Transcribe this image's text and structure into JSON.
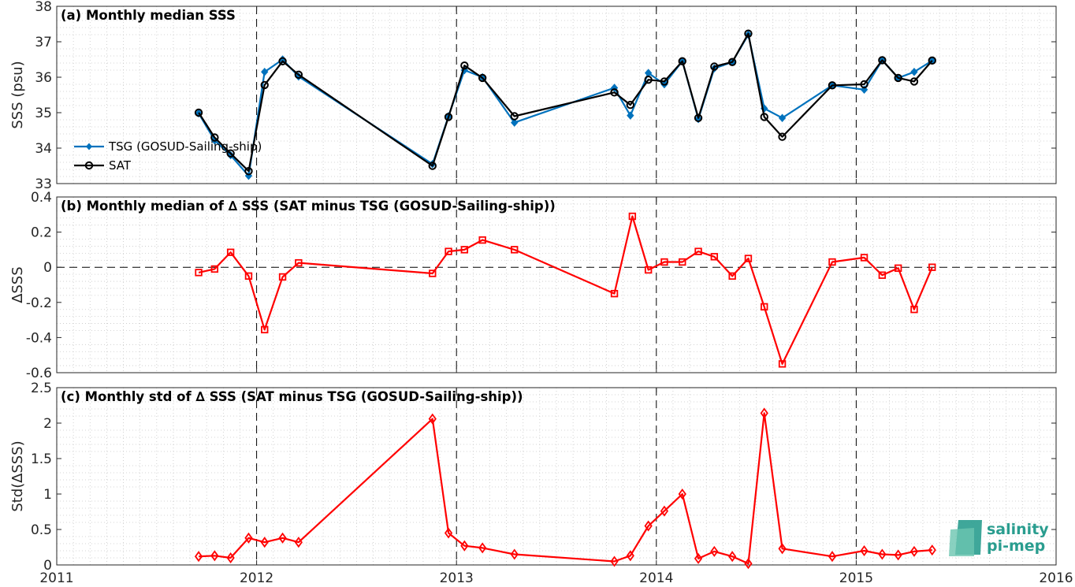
{
  "chart_data": [
    {
      "type": "line",
      "title": "(a) Monthly median SSS",
      "ylabel": "SSS (psu)",
      "xlim": [
        2011,
        2016
      ],
      "ylim": [
        33,
        38
      ],
      "yticks": [
        "33",
        "34",
        "35",
        "36",
        "37",
        "38"
      ],
      "grid": "minor dotted",
      "legend": "left-bottom",
      "series": [
        {
          "name": "TSG (GOSUD-Sailing-ship)",
          "color": "#0072bd",
          "marker": "diamond-filled",
          "x": [
            2011.71,
            2011.79,
            2011.87,
            2011.96,
            2012.04,
            2012.13,
            2012.21,
            2012.88,
            2012.96,
            2013.04,
            2013.13,
            2013.29,
            2013.79,
            2013.87,
            2013.96,
            2014.04,
            2014.13,
            2014.21,
            2014.29,
            2014.38,
            2014.46,
            2014.54,
            2014.63,
            2014.88,
            2015.04,
            2015.13,
            2015.21,
            2015.29,
            2015.38
          ],
          "values": [
            34.98,
            34.22,
            33.8,
            33.22,
            36.15,
            36.5,
            36.02,
            33.55,
            34.9,
            36.2,
            36.0,
            34.72,
            35.7,
            34.92,
            36.12,
            35.8,
            36.45,
            34.82,
            36.25,
            36.43,
            37.2,
            35.12,
            34.85,
            35.77,
            35.65,
            36.48,
            35.98,
            36.15,
            36.47
          ]
        },
        {
          "name": "SAT",
          "color": "#000000",
          "marker": "circle-open",
          "x": [
            2011.71,
            2011.79,
            2011.87,
            2011.96,
            2012.04,
            2012.13,
            2012.21,
            2012.88,
            2012.96,
            2013.04,
            2013.13,
            2013.29,
            2013.79,
            2013.87,
            2013.96,
            2014.04,
            2014.13,
            2014.21,
            2014.29,
            2014.38,
            2014.46,
            2014.54,
            2014.63,
            2014.88,
            2015.04,
            2015.13,
            2015.21,
            2015.29,
            2015.38
          ],
          "values": [
            35.0,
            34.3,
            33.85,
            33.35,
            35.78,
            36.45,
            36.07,
            33.5,
            34.88,
            36.33,
            35.98,
            34.9,
            35.57,
            35.22,
            35.93,
            35.88,
            36.45,
            34.85,
            36.3,
            36.43,
            37.23,
            34.88,
            34.32,
            35.77,
            35.8,
            36.48,
            35.98,
            35.88,
            36.47
          ]
        }
      ]
    },
    {
      "type": "line",
      "title": "(b) Monthly median of ∆ SSS (SAT minus TSG (GOSUD-Sailing-ship))",
      "ylabel": "∆SSS",
      "xlim": [
        2011,
        2016
      ],
      "ylim": [
        -0.6,
        0.4
      ],
      "yticks": [
        "-0.6",
        "-0.4",
        "-0.2",
        "0",
        "0.2",
        "0.4"
      ],
      "grid": "minor dotted",
      "series": [
        {
          "color": "#ff0000",
          "marker": "square-open",
          "x": [
            2011.71,
            2011.79,
            2011.87,
            2011.96,
            2012.04,
            2012.13,
            2012.21,
            2012.88,
            2012.96,
            2013.04,
            2013.13,
            2013.29,
            2013.79,
            2013.88,
            2013.96,
            2014.04,
            2014.13,
            2014.21,
            2014.29,
            2014.38,
            2014.46,
            2014.54,
            2014.63,
            2014.88,
            2015.04,
            2015.13,
            2015.21,
            2015.29,
            2015.38
          ],
          "values": [
            -0.03,
            -0.01,
            0.085,
            -0.05,
            -0.355,
            -0.055,
            0.025,
            -0.035,
            0.09,
            0.1,
            0.155,
            0.1,
            -0.15,
            0.29,
            -0.015,
            0.03,
            0.03,
            0.09,
            0.06,
            -0.05,
            0.05,
            -0.225,
            -0.55,
            0.03,
            0.055,
            -0.045,
            -0.005,
            -0.24,
            0.0
          ]
        }
      ]
    },
    {
      "type": "line",
      "title": "(c) Monthly std of ∆ SSS (SAT minus TSG (GOSUD-Sailing-ship))",
      "ylabel": "Std(∆SSS)",
      "xlabel": "",
      "xlim": [
        2011,
        2016
      ],
      "xticks": [
        "2011",
        "2012",
        "2013",
        "2014",
        "2015",
        "2016"
      ],
      "ylim": [
        0,
        2.5
      ],
      "yticks": [
        "0",
        "0.5",
        "1",
        "1.5",
        "2",
        "2.5"
      ],
      "grid": "minor dotted",
      "series": [
        {
          "color": "#ff0000",
          "marker": "diamond-open",
          "x": [
            2011.71,
            2011.79,
            2011.87,
            2011.96,
            2012.04,
            2012.13,
            2012.21,
            2012.88,
            2012.96,
            2013.04,
            2013.13,
            2013.29,
            2013.79,
            2013.87,
            2013.96,
            2014.04,
            2014.13,
            2014.21,
            2014.29,
            2014.38,
            2014.46,
            2014.54,
            2014.63,
            2014.88,
            2015.04,
            2015.13,
            2015.21,
            2015.29,
            2015.38
          ],
          "values": [
            0.12,
            0.13,
            0.1,
            0.38,
            0.32,
            0.38,
            0.32,
            2.06,
            0.45,
            0.27,
            0.24,
            0.15,
            0.05,
            0.13,
            0.55,
            0.76,
            1.0,
            0.09,
            0.19,
            0.12,
            0.02,
            2.14,
            0.23,
            0.12,
            0.2,
            0.15,
            0.14,
            0.19,
            0.21
          ]
        }
      ]
    }
  ],
  "logo": {
    "line1": "salinity",
    "line2": "pi-mep",
    "color": "#2a9d8f"
  }
}
